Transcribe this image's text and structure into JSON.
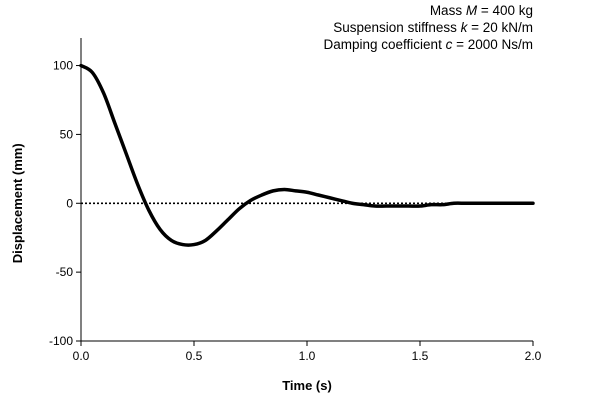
{
  "chart_data": {
    "type": "line",
    "xlabel": "Time (s)",
    "ylabel": "Displacement (mm)",
    "xlim": [
      0,
      2.0
    ],
    "ylim": [
      -100,
      100
    ],
    "x_ticks": [
      {
        "value": 0.0,
        "label": "0.0"
      },
      {
        "value": 0.5,
        "label": "0.5"
      },
      {
        "value": 1.0,
        "label": "1.0"
      },
      {
        "value": 1.5,
        "label": "1.5"
      },
      {
        "value": 2.0,
        "label": "2.0"
      }
    ],
    "y_ticks": [
      {
        "value": 100,
        "label": "100"
      },
      {
        "value": 50,
        "label": "50"
      },
      {
        "value": 0,
        "label": "0"
      },
      {
        "value": -50,
        "label": "-50"
      },
      {
        "value": -100,
        "label": "-100"
      }
    ],
    "grid": false,
    "legend": "none",
    "zero_line": "dotted",
    "annotations": [
      {
        "prefix": "Mass ",
        "variable": "M",
        "suffix": " =  400 kg"
      },
      {
        "prefix": "Suspension stiffness ",
        "variable": "k",
        "suffix": " =  20 kN/m"
      },
      {
        "prefix": "Damping coefficient ",
        "variable": "c",
        "suffix": " =  2000 Ns/m"
      }
    ],
    "series": [
      {
        "color": "#000000",
        "x": [
          0,
          0.05,
          0.1,
          0.15,
          0.2,
          0.25,
          0.3,
          0.35,
          0.4,
          0.45,
          0.5,
          0.55,
          0.6,
          0.65,
          0.7,
          0.75,
          0.8,
          0.85,
          0.9,
          0.95,
          1.0,
          1.05,
          1.1,
          1.15,
          1.2,
          1.25,
          1.3,
          1.35,
          1.4,
          1.45,
          1.5,
          1.55,
          1.6,
          1.65,
          1.7,
          1.75,
          1.8,
          1.85,
          1.9,
          1.95,
          2.0
        ],
        "values": [
          100,
          95,
          80,
          58,
          36,
          14,
          -5,
          -19,
          -27,
          -30,
          -30,
          -27,
          -20,
          -12,
          -4,
          2,
          6,
          9,
          10,
          9,
          8,
          6,
          4,
          2,
          0,
          -1,
          -2,
          -2,
          -2,
          -2,
          -2,
          -1,
          -1,
          0,
          0,
          0,
          0,
          0,
          0,
          0,
          0
        ]
      }
    ]
  }
}
